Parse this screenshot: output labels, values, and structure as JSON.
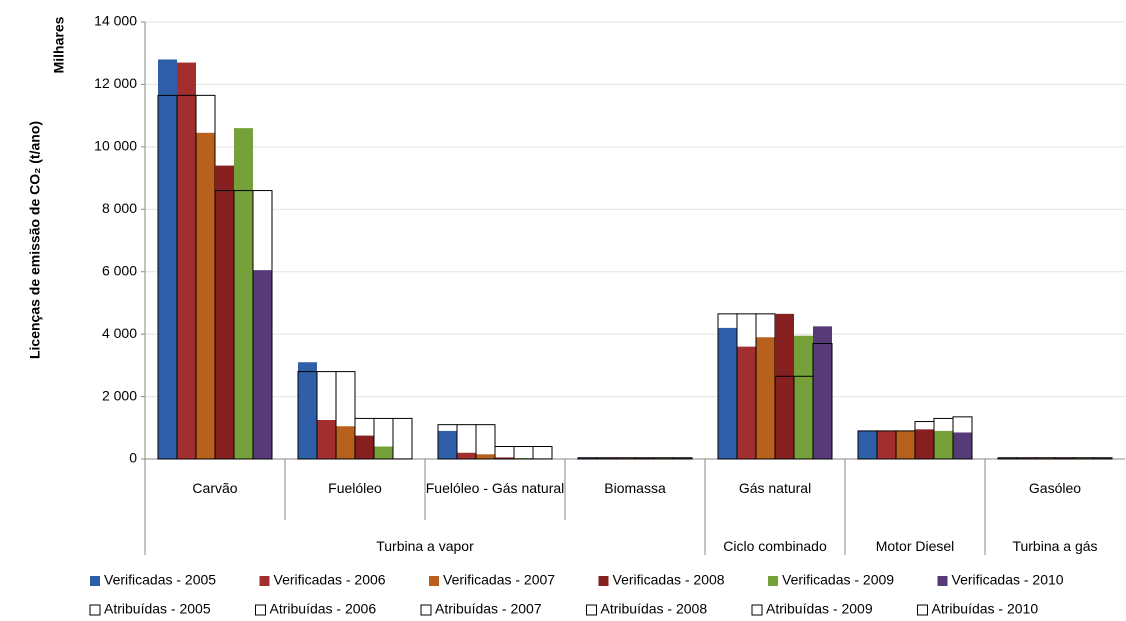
{
  "chart_data": {
    "type": "bar",
    "y_axis_title": "Licenças de emissão de CO₂ (t/ano)",
    "y_unit_label": "Milhares",
    "categories": [
      "Carvão",
      "Fuelóleo",
      "Fuelóleo - Gás natural",
      "Biomassa",
      "Gás natural",
      null,
      "Gasóleo"
    ],
    "groups": [
      {
        "name": "Turbina a vapor",
        "span": 4
      },
      {
        "name": "Ciclo combinado",
        "span": 1
      },
      {
        "name": "Motor Diesel",
        "span": 1
      },
      {
        "name": "Turbina a gás",
        "span": 1
      }
    ],
    "series": [
      {
        "name": "Verificadas - 2005",
        "color": "#2f5fa8",
        "values": [
          12800,
          3100,
          900,
          30,
          4200,
          900,
          30
        ]
      },
      {
        "name": "Verificadas - 2006",
        "color": "#a32e2e",
        "values": [
          12700,
          1250,
          200,
          30,
          3600,
          900,
          30
        ]
      },
      {
        "name": "Verificadas - 2007",
        "color": "#b8601c",
        "values": [
          10450,
          1050,
          150,
          30,
          3900,
          900,
          30
        ]
      },
      {
        "name": "Verificadas - 2008",
        "color": "#862020",
        "values": [
          9400,
          750,
          50,
          30,
          4650,
          950,
          30
        ]
      },
      {
        "name": "Verificadas - 2009",
        "color": "#76a03a",
        "values": [
          10600,
          400,
          30,
          30,
          3950,
          900,
          30
        ]
      },
      {
        "name": "Verificadas - 2010",
        "color": "#573a78",
        "values": [
          6050,
          20,
          20,
          30,
          4250,
          850,
          30
        ]
      },
      {
        "name": "Atribuídas - 2005",
        "color": "#ffffff",
        "values": [
          11650,
          2800,
          1100,
          40,
          4650,
          900,
          40
        ]
      },
      {
        "name": "Atribuídas - 2006",
        "color": "#ffffff",
        "values": [
          11650,
          2800,
          1100,
          40,
          4650,
          900,
          40
        ]
      },
      {
        "name": "Atribuídas - 2007",
        "color": "#ffffff",
        "values": [
          11650,
          2800,
          1100,
          40,
          4650,
          900,
          40
        ]
      },
      {
        "name": "Atribuídas - 2008",
        "color": "#ffffff",
        "values": [
          8600,
          1300,
          400,
          40,
          2650,
          1200,
          40
        ]
      },
      {
        "name": "Atribuídas - 2009",
        "color": "#ffffff",
        "values": [
          8600,
          1300,
          400,
          40,
          2650,
          1300,
          40
        ]
      },
      {
        "name": "Atribuídas - 2010",
        "color": "#ffffff",
        "values": [
          8600,
          1300,
          400,
          40,
          3700,
          1350,
          40
        ]
      }
    ],
    "ylim": [
      0,
      14000
    ],
    "yticks": [
      0,
      {
        "value": 2000,
        "label": "2 000"
      },
      {
        "value": 4000,
        "label": "4 000"
      },
      {
        "value": 6000,
        "label": "6 000"
      },
      {
        "value": 8000,
        "label": "8 000"
      },
      {
        "value": 10000,
        "label": "10 000"
      },
      {
        "value": 12000,
        "label": "12 000"
      },
      {
        "value": 14000,
        "label": "14 000"
      }
    ],
    "grid": true
  }
}
